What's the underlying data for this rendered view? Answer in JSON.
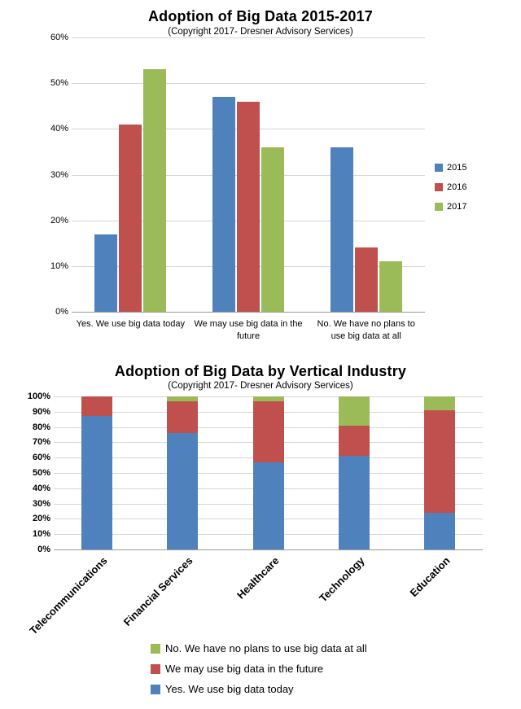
{
  "colors": {
    "blue": "#4f81bd",
    "red": "#c0504d",
    "green": "#9bbb59",
    "grid": "#d6d6d6",
    "axis": "#9a9a9a"
  },
  "chart_data": [
    {
      "type": "bar",
      "stacked": false,
      "title": "Adoption of Big Data 2015-2017",
      "subtitle": "(Copyright 2017- Dresner Advisory Services)",
      "categories": [
        "Yes. We use big data today",
        "We may use big data in the future",
        "No. We have no plans to use big data at all"
      ],
      "series": [
        {
          "name": "2015",
          "color_key": "blue",
          "values": [
            17,
            47,
            36
          ]
        },
        {
          "name": "2016",
          "color_key": "red",
          "values": [
            41,
            46,
            14
          ]
        },
        {
          "name": "2017",
          "color_key": "green",
          "values": [
            53,
            36,
            11
          ]
        }
      ],
      "xlabel": "",
      "ylabel": "",
      "ylim": [
        0,
        60
      ],
      "ytick_step": 10,
      "ytick_labels": [
        "0%",
        "10%",
        "20%",
        "30%",
        "40%",
        "50%",
        "60%"
      ],
      "grid": true,
      "legend_position": "right",
      "legend_order": [
        0,
        1,
        2
      ]
    },
    {
      "type": "bar",
      "stacked": true,
      "title": "Adoption of Big Data by Vertical Industry",
      "subtitle": "(Copyright 2017- Dresner Advisory Services)",
      "categories": [
        "Telecommunications",
        "Financial Services",
        "Healthcare",
        "Technology",
        "Education"
      ],
      "series": [
        {
          "name": "Yes. We use big data today",
          "color_key": "blue",
          "values": [
            87,
            76,
            57,
            61,
            24
          ]
        },
        {
          "name": "We may use big data in the future",
          "color_key": "red",
          "values": [
            13,
            21,
            40,
            20,
            67
          ]
        },
        {
          "name": "No. We have no plans to use big data at all",
          "color_key": "green",
          "values": [
            0,
            3,
            3,
            19,
            9
          ]
        }
      ],
      "xlabel": "",
      "ylabel": "",
      "ylim": [
        0,
        100
      ],
      "ytick_step": 10,
      "ytick_labels": [
        "0%",
        "10%",
        "20%",
        "30%",
        "40%",
        "50%",
        "60%",
        "70%",
        "80%",
        "90%",
        "100%"
      ],
      "grid": true,
      "legend_position": "bottom",
      "legend_order": [
        2,
        1,
        0
      ]
    }
  ]
}
